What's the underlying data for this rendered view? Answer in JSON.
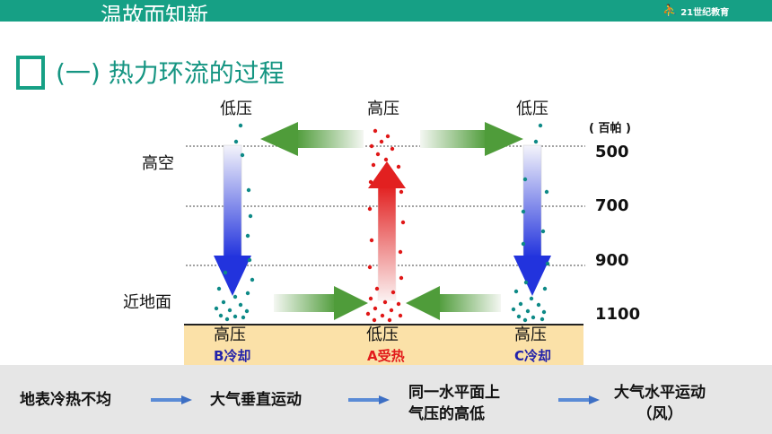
{
  "header": {
    "title": "温故而知新",
    "logo_text": "21世纪教育"
  },
  "section": {
    "title": "(一) 热力环流的过程"
  },
  "diagram": {
    "top_labels": [
      "低压",
      "高压",
      "低压"
    ],
    "unit": "( 百帕 )",
    "pressure_levels": [
      "500",
      "700",
      "900",
      "1100"
    ],
    "left_labels": {
      "high_altitude": "高空",
      "near_ground": "近地面"
    },
    "ground_labels": [
      "高压",
      "低压",
      "高压"
    ],
    "ground_sublabels": [
      "B冷却",
      "A受热",
      "C冷却"
    ],
    "colors": {
      "accent": "#16a085",
      "heat": "#e21b1b",
      "cold": "#2222aa",
      "dots_cold": "#0e8a87",
      "dots_hot": "#e01818",
      "ground": "#fbe1a8"
    }
  },
  "flow": {
    "steps": [
      "地表冷热不均",
      "大气垂直运动",
      "同一水平面上\n气压的高低",
      "大气水平运动\n（风）"
    ]
  }
}
